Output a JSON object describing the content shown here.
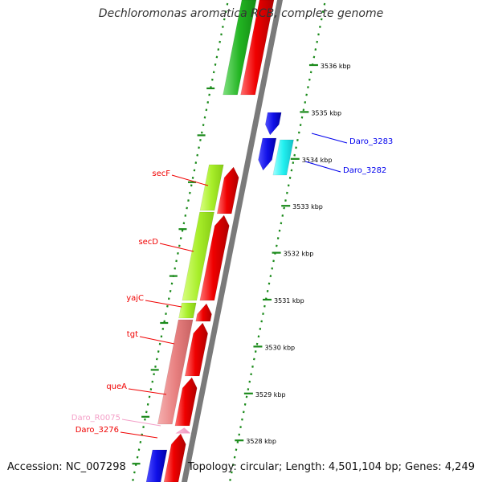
{
  "header": {
    "title": "Dechloromonas aromatica RCB, complete genome"
  },
  "footer": {
    "accession": "Accession: NC_007298",
    "summary": "Topology: circular; Length: 4,501,104 bp; Genes: 4,249"
  },
  "colors": {
    "forward_gene": "#f00000",
    "reverse_gene": "#0000ee",
    "trna": "#f4a0c8",
    "backbone": "#7a7a7a",
    "tick": "#1a8a1a",
    "ruler_label": "#000000"
  },
  "ruler": {
    "labels": [
      "3536 kbp",
      "3535 kbp",
      "3534 kbp",
      "3533 kbp",
      "3532 kbp",
      "3531 kbp",
      "3530 kbp",
      "3529 kbp",
      "3528 kbp"
    ]
  },
  "gene_labels": {
    "left": [
      "secF",
      "secD",
      "yajC",
      "tgt",
      "queA",
      "Daro_R0075",
      "Daro_3276"
    ],
    "right": [
      "Daro_3283",
      "Daro_3282"
    ]
  }
}
